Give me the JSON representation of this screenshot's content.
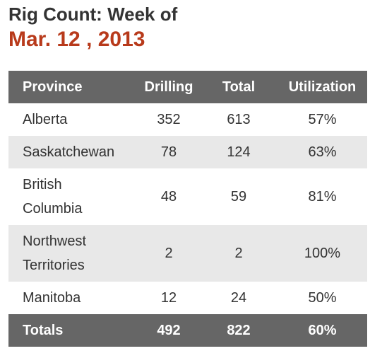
{
  "header": {
    "title": "Rig Count: Week of",
    "date": "Mar. 12 , 2013"
  },
  "table": {
    "columns": [
      "Province",
      "Drilling",
      "Total",
      "Utilization"
    ],
    "rows": [
      [
        "Alberta",
        352,
        613,
        "57%"
      ],
      [
        "Saskatchewan",
        78,
        124,
        "63%"
      ],
      [
        "British Columbia",
        48,
        59,
        "81%"
      ],
      [
        "Northwest Territories",
        2,
        2,
        "100%"
      ],
      [
        "Manitoba",
        12,
        24,
        "50%"
      ]
    ],
    "totals": [
      "Totals",
      492,
      822,
      "60%"
    ]
  }
}
